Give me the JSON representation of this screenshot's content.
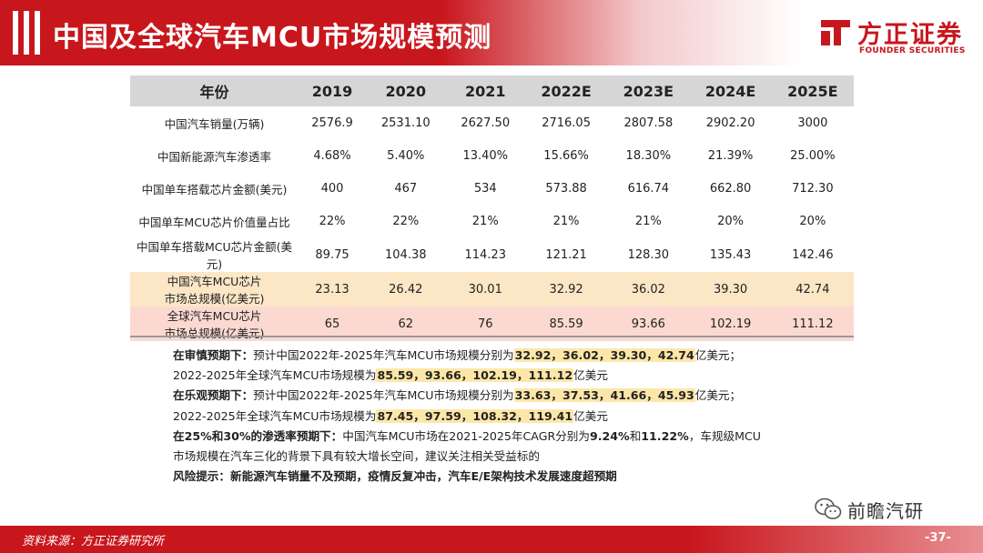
{
  "header": {
    "title": "中国及全球汽车MCU市场规模预测",
    "logo_cn": "方正证券",
    "logo_en": "FOUNDER SECURITIES"
  },
  "table": {
    "headers": [
      "年份",
      "2019",
      "2020",
      "2021",
      "2022E",
      "2023E",
      "2024E",
      "2025E"
    ],
    "rows": [
      {
        "label": "中国汽车销量(万辆)",
        "values": [
          "2576.9",
          "2531.10",
          "2627.50",
          "2716.05",
          "2807.58",
          "2902.20",
          "3000"
        ]
      },
      {
        "label": "中国新能源汽车渗透率",
        "values": [
          "4.68%",
          "5.40%",
          "13.40%",
          "15.66%",
          "18.30%",
          "21.39%",
          "25.00%"
        ]
      },
      {
        "label": "中国单车搭载芯片金额(美元)",
        "values": [
          "400",
          "467",
          "534",
          "573.88",
          "616.74",
          "662.80",
          "712.30"
        ]
      },
      {
        "label": "中国单车MCU芯片价值量占比",
        "values": [
          "22%",
          "22%",
          "21%",
          "21%",
          "21%",
          "20%",
          "20%"
        ]
      },
      {
        "label": "中国单车搭载MCU芯片金额(美元)",
        "values": [
          "89.75",
          "104.38",
          "114.23",
          "121.21",
          "128.30",
          "135.43",
          "142.46"
        ]
      },
      {
        "label_line1": "中国汽车MCU芯片",
        "label_line2": "市场总规模(亿美元)",
        "values": [
          "23.13",
          "26.42",
          "30.01",
          "32.92",
          "36.02",
          "39.30",
          "42.74"
        ]
      },
      {
        "label_line1": "全球汽车MCU芯片",
        "label_line2": "市场总规模(亿美元)",
        "values": [
          "65",
          "62",
          "76",
          "85.59",
          "93.66",
          "102.19",
          "111.12"
        ]
      }
    ]
  },
  "notes": {
    "l1_bold": "在审慎预期下：",
    "l1_text": "预计中国2022年-2025年汽车MCU市场规模分别为",
    "l1_hl": "32.92，36.02，39.30，42.74",
    "l1_tail": "亿美元；",
    "l2_text": "2022-2025年全球汽车MCU市场规模为",
    "l2_hl": "85.59，93.66，102.19，111.12",
    "l2_tail": "亿美元",
    "l3_bold": "在乐观预期下：",
    "l3_text": "预计中国2022年-2025年汽车MCU市场规模分别为",
    "l3_hl": "33.63，37.53，41.66，45.93",
    "l3_tail": "亿美元；",
    "l4_text": "2022-2025年全球汽车MCU市场规模为",
    "l4_hl": "87.45，97.59，108.32，119.41",
    "l4_tail": "亿美元",
    "l5_bold": "在25%和30%的渗透率预期下：",
    "l5_text": "中国汽车MCU市场在2021-2025年CAGR分别为",
    "l5_b1": "9.24%",
    "l5_mid": "和",
    "l5_b2": "11.22%",
    "l5_tail": "，车规级MCU",
    "l6_text": "市场规模在汽车三化的背景下具有较大增长空间，建议关注相关受益标的",
    "l7_bold": "风险提示：新能源汽车销量不及预期，疫情反复冲击，汽车E/E架构技术发展速度超预期"
  },
  "footer": {
    "source": "资料来源：方正证券研究所",
    "page": "-37-",
    "wechat_name": "前瞻汽研",
    "wechat_icon": "wechat-icon"
  },
  "colors": {
    "brand_red": "#c8161d",
    "header_gray": "#d6d6d6",
    "row_yellow": "#fbe6c6",
    "row_pink": "#fbd9d1",
    "highlight": "#fde7a8"
  }
}
